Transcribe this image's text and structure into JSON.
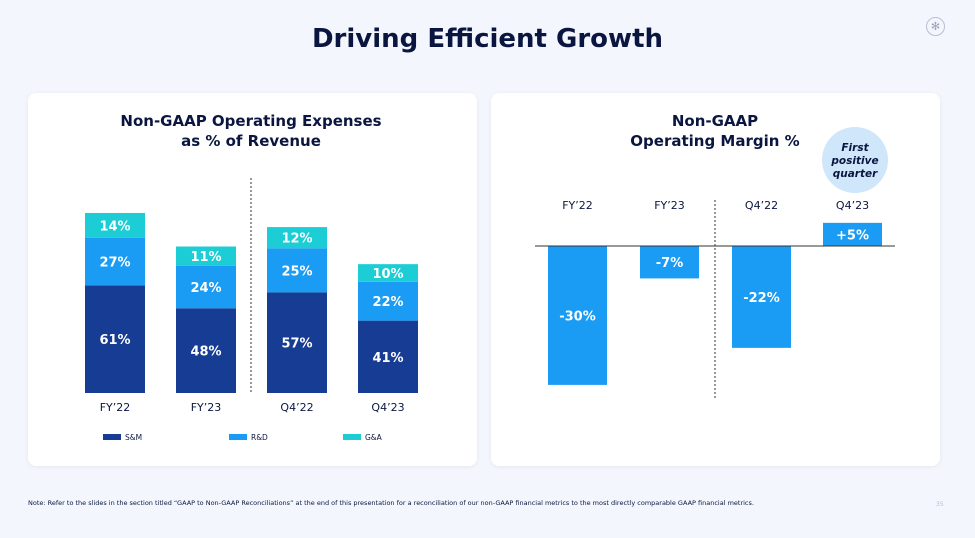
{
  "title": "Driving Efficient Growth",
  "icons": {
    "logo": "asterisk-circle-icon"
  },
  "colors": {
    "sm": "#173c94",
    "rd": "#1a9bf4",
    "ga": "#1ccdd6",
    "margin": "#1a9bf4",
    "navy": "#0b1640",
    "bubble": "#cfe6fb"
  },
  "note": "Note: Refer to the slides in the section titled “GAAP to Non-GAAP Reconciliations” at the end of this presentation for a reconciliation of our non-GAAP financial metrics to the most directly comparable GAAP financial metrics.",
  "page_number": "35",
  "chart_data": [
    {
      "type": "bar",
      "stacked": true,
      "title": "Non-GAAP Operating Expenses",
      "subtitle": "as % of Revenue",
      "categories": [
        "FY’22",
        "FY’23",
        "Q4’22",
        "Q4’23"
      ],
      "series": [
        {
          "name": "S&M",
          "values": [
            61,
            48,
            57,
            41
          ],
          "labels": [
            "61%",
            "48%",
            "57%",
            "41%"
          ]
        },
        {
          "name": "R&D",
          "values": [
            27,
            24,
            25,
            22
          ],
          "labels": [
            "27%",
            "24%",
            "25%",
            "22%"
          ]
        },
        {
          "name": "G&A",
          "values": [
            14,
            11,
            12,
            10
          ],
          "labels": [
            "14%",
            "11%",
            "12%",
            "10%"
          ]
        }
      ],
      "legend": "bottom",
      "grid": false
    },
    {
      "type": "bar",
      "title": "Non-GAAP",
      "subtitle": "Operating Margin %",
      "categories": [
        "FY’22",
        "FY’23",
        "Q4’22",
        "Q4’23"
      ],
      "values": [
        -30,
        -7,
        -22,
        5
      ],
      "labels": [
        "-30%",
        "-7%",
        "-22%",
        "+5%"
      ],
      "annotation": {
        "lines": [
          "First",
          "positive",
          "quarter"
        ]
      },
      "grid": false
    }
  ]
}
